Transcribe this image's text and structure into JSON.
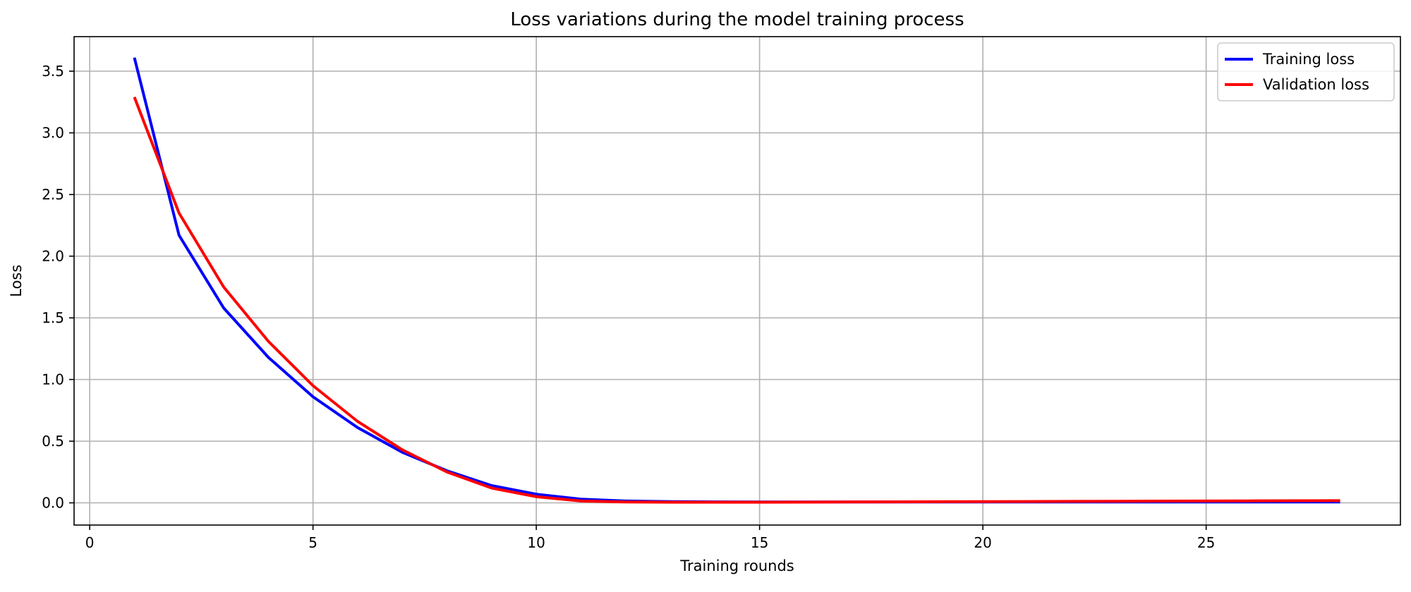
{
  "chart_data": {
    "type": "line",
    "title": "Loss variations during the model training process",
    "xlabel": "Training rounds",
    "ylabel": "Loss",
    "xlim": [
      -0.35,
      29.35
    ],
    "ylim": [
      -0.18,
      3.78
    ],
    "xticks": [
      0,
      5,
      10,
      15,
      20,
      25
    ],
    "yticks": [
      0.0,
      0.5,
      1.0,
      1.5,
      2.0,
      2.5,
      3.0,
      3.5
    ],
    "grid": true,
    "legend_position": "top-right",
    "x": [
      1,
      2,
      3,
      4,
      5,
      6,
      7,
      8,
      9,
      10,
      11,
      12,
      13,
      14,
      15,
      16,
      17,
      18,
      19,
      20,
      21,
      22,
      23,
      24,
      25,
      26,
      27,
      28
    ],
    "series": [
      {
        "name": "Training loss",
        "color": "#0000ff",
        "values": [
          3.61,
          2.17,
          1.58,
          1.18,
          0.86,
          0.61,
          0.41,
          0.26,
          0.14,
          0.07,
          0.03,
          0.015,
          0.01,
          0.008,
          0.007,
          0.007,
          0.007,
          0.007,
          0.007,
          0.007,
          0.007,
          0.007,
          0.007,
          0.007,
          0.007,
          0.007,
          0.007,
          0.007
        ]
      },
      {
        "name": "Validation loss",
        "color": "#ff0000",
        "values": [
          3.29,
          2.35,
          1.75,
          1.31,
          0.95,
          0.66,
          0.43,
          0.25,
          0.12,
          0.05,
          0.015,
          0.007,
          0.005,
          0.005,
          0.005,
          0.006,
          0.007,
          0.008,
          0.009,
          0.01,
          0.011,
          0.012,
          0.013,
          0.014,
          0.015,
          0.016,
          0.017,
          0.018
        ]
      }
    ]
  }
}
